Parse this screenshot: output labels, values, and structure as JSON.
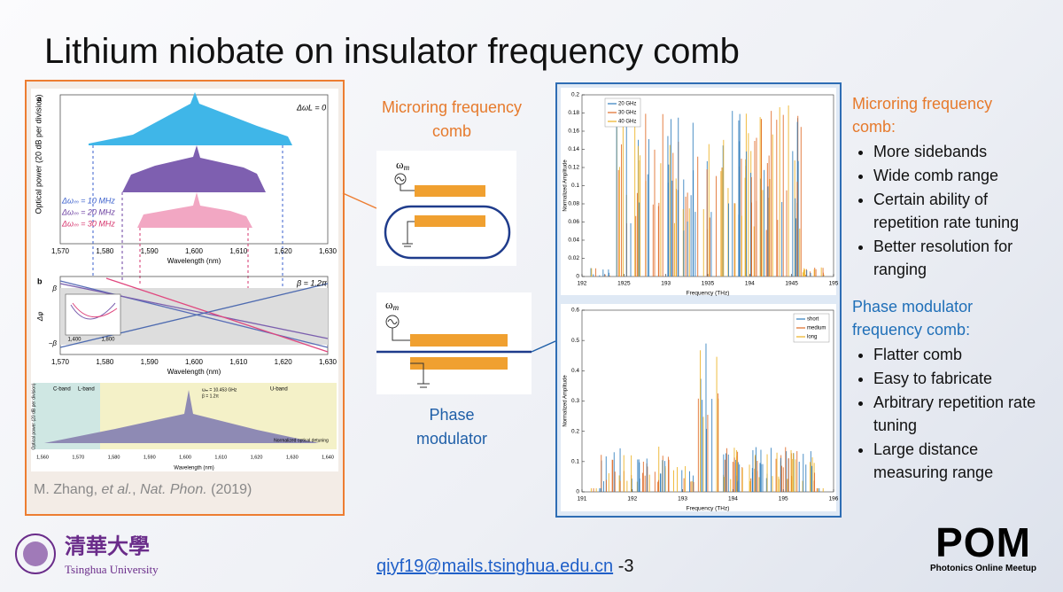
{
  "title": "Lithium niobate on insulator frequency comb",
  "left_figure": {
    "panel_a": {
      "label": "a",
      "annotation": "ΔωL = 0",
      "legend": [
        "Δωₘ = 10 MHz",
        "Δωₘ = 20 MHz",
        "Δωₘ = 30 MHz"
      ],
      "y_label": "Optical power (20 dB per division)",
      "x_label": "Wavelength (nm)",
      "x_ticks": [
        "1,570",
        "1,580",
        "1,590",
        "1,600",
        "1,610",
        "1,620",
        "1,630"
      ]
    },
    "panel_b": {
      "label": "b",
      "annotation": "β = 1.2π",
      "y_label": "Δφ",
      "y_ticks": [
        "β",
        "−β"
      ],
      "inset_ticks": [
        "1,400",
        "1,800"
      ],
      "x_label": "Wavelength (nm)",
      "x_ticks": [
        "1,570",
        "1,580",
        "1,590",
        "1,600",
        "1,610",
        "1,620",
        "1,630"
      ]
    },
    "panel_c": {
      "bands": [
        "C-band",
        "L-band",
        "U-band"
      ],
      "params": [
        "ωₘ = 10.453 GHz",
        "β = 1.2π"
      ],
      "y_label": "Optical power (20 dB per division)",
      "x_label": "Wavelength (nm)",
      "inset_label": "Normalized optical detuning",
      "x_ticks": [
        "1,560",
        "1,570",
        "1,580",
        "1,590",
        "1,600",
        "1,610",
        "1,620",
        "1,630",
        "1,640"
      ]
    },
    "citation": {
      "authors": "M. Zhang, ",
      "etal": "et al.",
      "sep": ", ",
      "journal": "Nat. Phon.",
      "year": " (2019)"
    }
  },
  "diagrams": {
    "microring_label": "Microring frequency comb",
    "microring_source": "ω",
    "microring_source_sub": "m",
    "phase_label": "Phase modulator",
    "phase_source": "ω",
    "phase_source_sub": "m"
  },
  "right_charts": [
    {
      "legend": [
        {
          "name": "20 GHz",
          "color": "#2f7dbd"
        },
        {
          "name": "30 GHz",
          "color": "#e06a26"
        },
        {
          "name": "40 GHz",
          "color": "#edb120"
        }
      ],
      "y_label": "Normalized Amplitude",
      "x_label": "Frequency (THz)",
      "y_ticks": [
        "0",
        "0.02",
        "0.04",
        "0.06",
        "0.08",
        "0.1",
        "0.12",
        "0.14",
        "0.16",
        "0.18",
        "0.2"
      ],
      "x_ticks": [
        "192",
        "1925",
        "193",
        "1935",
        "194",
        "1945",
        "195"
      ]
    },
    {
      "legend": [
        {
          "name": "short",
          "color": "#2f7dbd"
        },
        {
          "name": "medium",
          "color": "#e06a26"
        },
        {
          "name": "long",
          "color": "#edb120"
        }
      ],
      "y_label": "Normalized Amplitude",
      "x_label": "Frequency (THz)",
      "y_ticks": [
        "0",
        "0.1",
        "0.2",
        "0.3",
        "0.4",
        "0.5",
        "0.6"
      ],
      "x_ticks": [
        "191",
        "192",
        "193",
        "194",
        "195",
        "196"
      ]
    }
  ],
  "sections": [
    {
      "heading": "Microring frequency comb:",
      "items": [
        "More sidebands",
        "Wide comb range",
        "Certain ability of repetition rate tuning",
        "Better resolution for ranging"
      ]
    },
    {
      "heading": "Phase modulator frequency comb:",
      "items": [
        "Flatter comb",
        "Easy to fabricate",
        "Arbitrary repetition rate tuning",
        "Large distance measuring range"
      ]
    }
  ],
  "footer": {
    "university_cn": "清華大學",
    "university_en": "Tsinghua University",
    "email": "qiyf19@mails.tsinghua.edu.cn",
    "page": "-3",
    "pom": "POM",
    "pom_sub": "Photonics Online Meetup"
  }
}
